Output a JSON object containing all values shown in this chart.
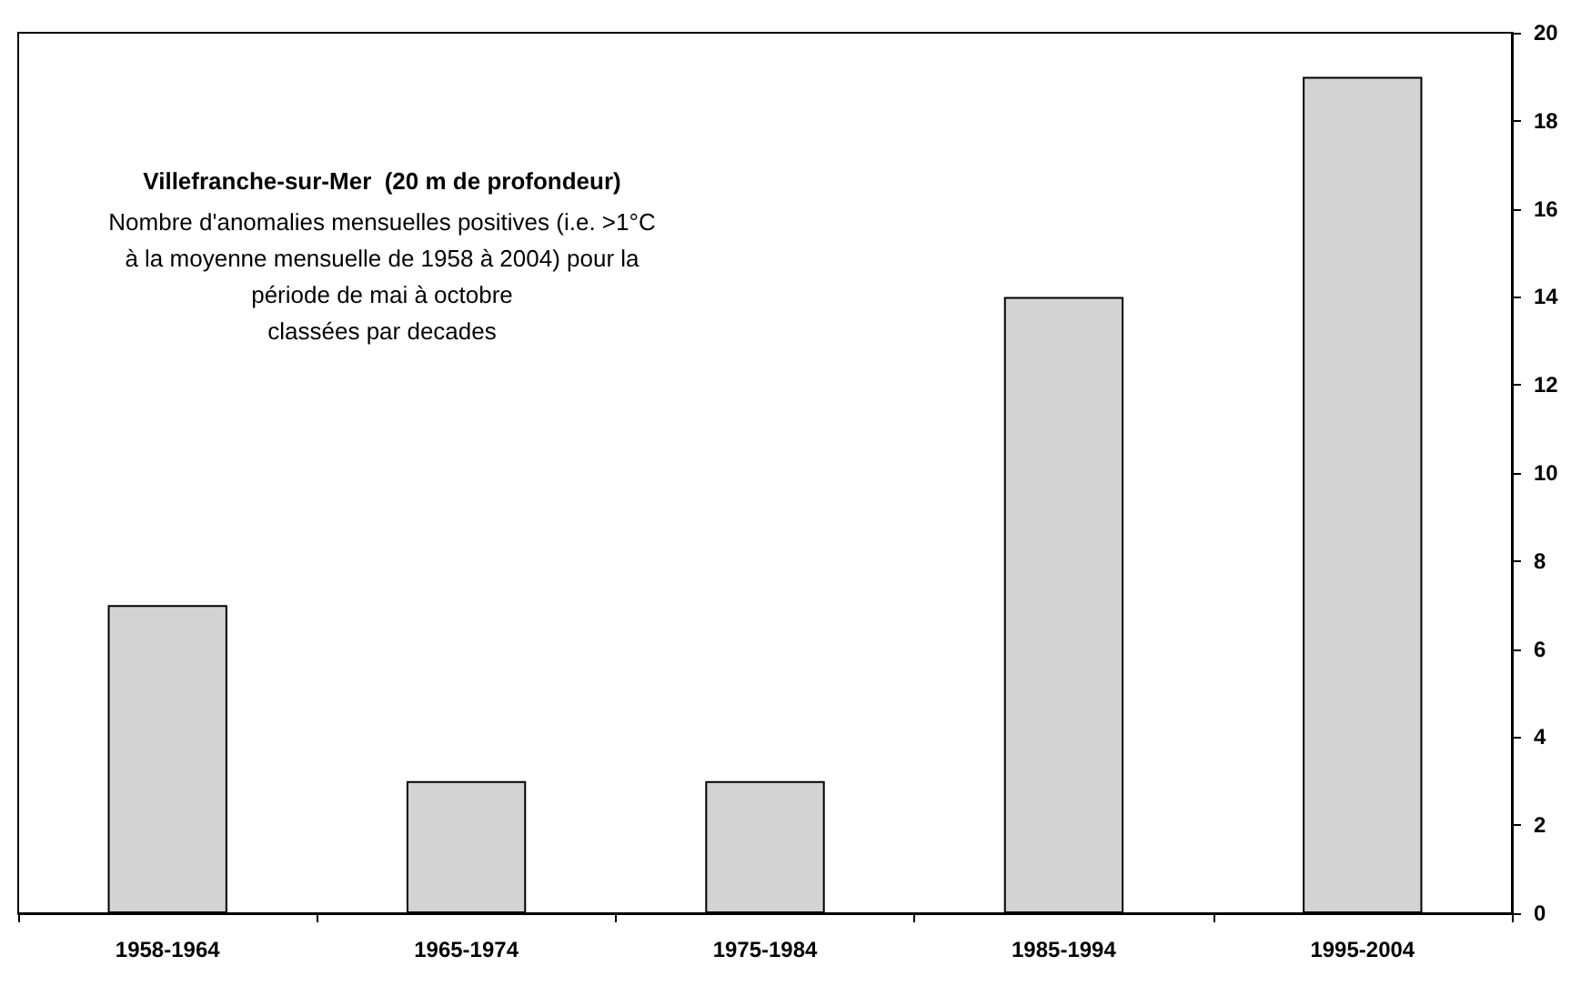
{
  "chart_data": {
    "type": "bar",
    "title": "Villefranche-sur-Mer  (20 m de profondeur)",
    "subtitle": "Nombre d'anomalies mensuelles positives (i.e. >1°C\nà la moyenne mensuelle de 1958 à 2004) pour la\npériode de mai à octobre\nclassées par decades",
    "categories": [
      "1958-1964",
      "1965-1974",
      "1975-1984",
      "1985-1994",
      "1995-2004"
    ],
    "values": [
      7,
      3,
      3,
      14,
      19
    ],
    "color": "#d3d3d3",
    "ylim": [
      0,
      20
    ],
    "yticks": [
      0,
      2,
      4,
      6,
      8,
      10,
      12,
      14,
      16,
      18,
      20
    ],
    "grid": false
  }
}
